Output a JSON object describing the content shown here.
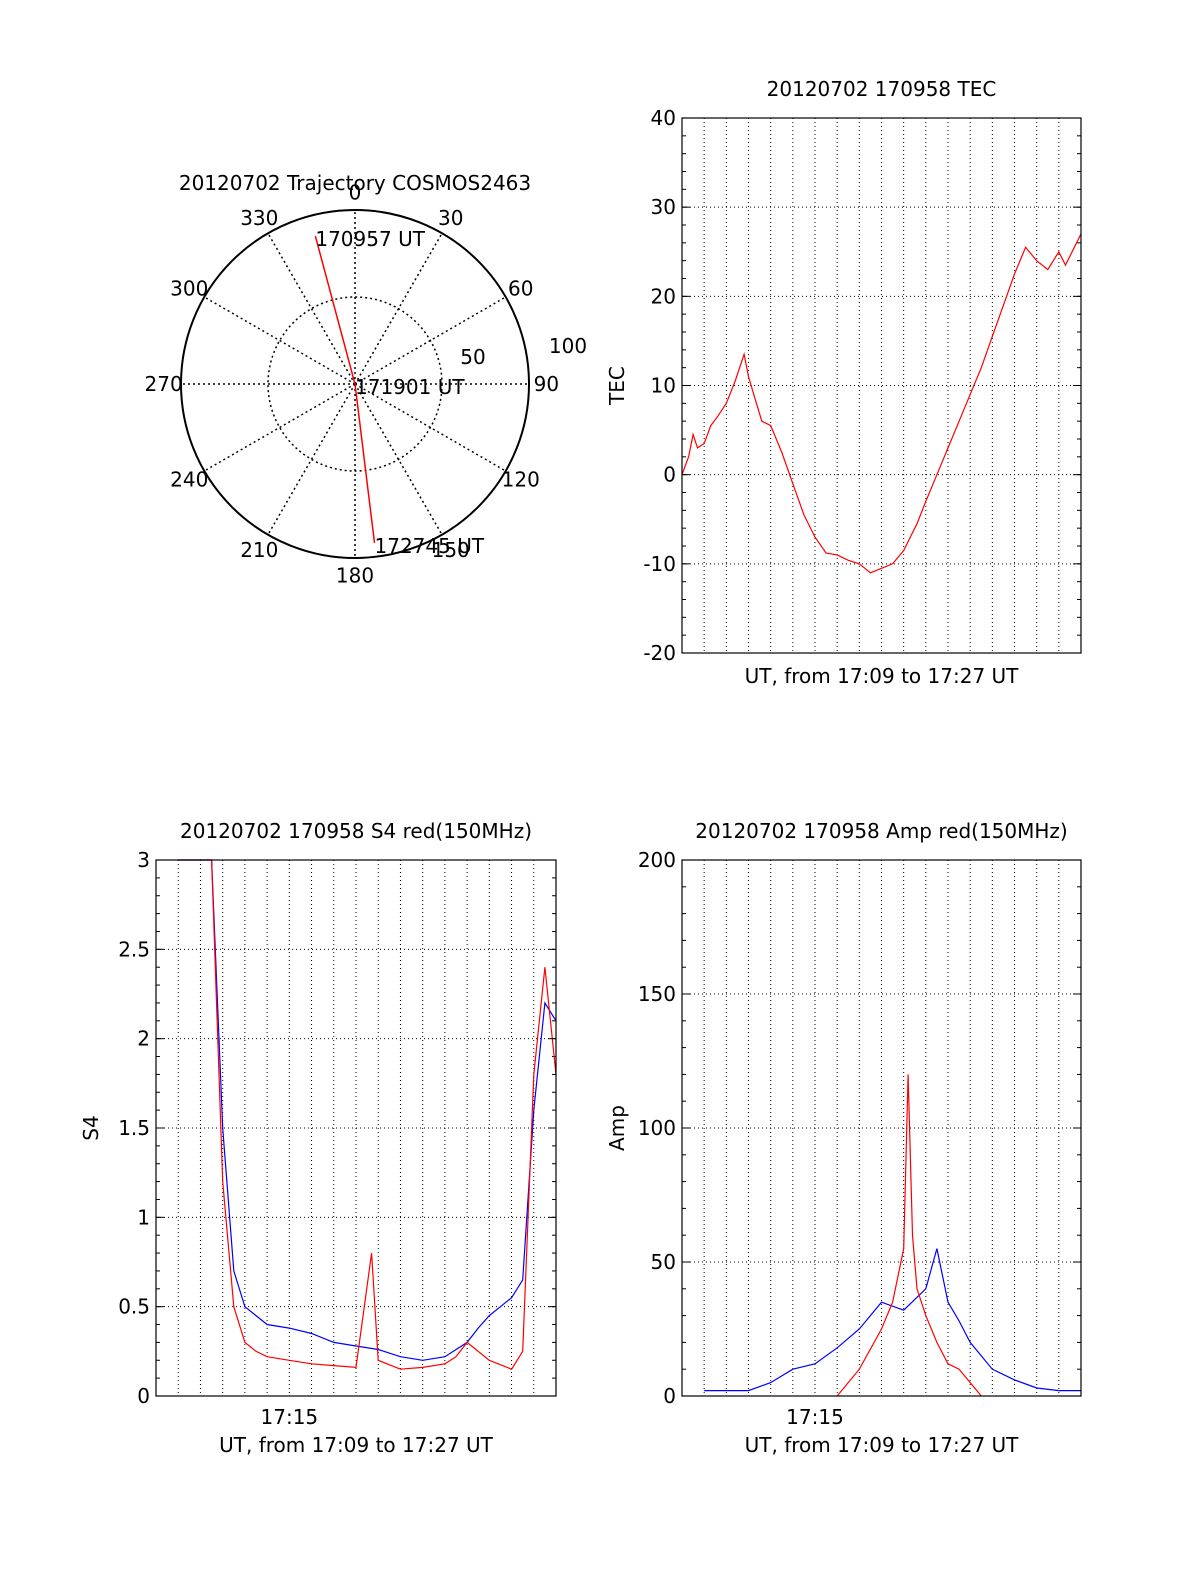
{
  "chart_data": [
    {
      "type": "polar",
      "title": "20120702 Trajectory COSMOS2463",
      "azimuth_ticks": [
        0,
        30,
        60,
        90,
        120,
        150,
        180,
        210,
        240,
        270,
        300,
        330
      ],
      "azimuth_labels": [
        "0",
        "30",
        "60",
        "90",
        "120",
        "150",
        "180",
        "210",
        "240",
        "270",
        "300",
        "330"
      ],
      "radial_ring_labels": [
        "50",
        "100"
      ],
      "radial_max": 100,
      "grid": true,
      "series": [
        {
          "color": "#ff0000",
          "points": [
            {
              "label": "170957 UT",
              "azimuth": 345,
              "zenith": 88
            },
            {
              "label": "171901 UT",
              "azimuth": 0,
              "zenith": 0
            },
            {
              "label": "172745 UT",
              "azimuth": 173,
              "zenith": 92
            }
          ]
        }
      ]
    },
    {
      "type": "line",
      "title": "20120702 170958 TEC",
      "xlabel": "UT, from 17:09 to 17:27 UT",
      "ylabel": "TEC",
      "xlim": [
        0,
        18
      ],
      "ylim": [
        -20,
        40
      ],
      "yticks": [
        -20,
        -10,
        0,
        10,
        20,
        30,
        40
      ],
      "ytick_labels": [
        "-20",
        "-10",
        "0",
        "10",
        "20",
        "30",
        "40"
      ],
      "grid": true,
      "series": [
        {
          "color": "#ff0000",
          "x": [
            0.0,
            0.3,
            0.5,
            0.7,
            1.0,
            1.3,
            1.6,
            2.0,
            2.4,
            2.8,
            3.0,
            3.3,
            3.6,
            4.0,
            4.5,
            5.0,
            5.5,
            6.0,
            6.5,
            7.0,
            7.5,
            8.0,
            8.5,
            9.0,
            9.5,
            10.0,
            10.3,
            10.6,
            11.0,
            11.5,
            12.0,
            12.5,
            13.0,
            13.5,
            14.0,
            14.5,
            15.0,
            15.5,
            16.0,
            16.5,
            17.0,
            17.3,
            17.6,
            18.0
          ],
          "y": [
            0.0,
            2.0,
            4.5,
            3.0,
            3.5,
            5.5,
            6.5,
            8.0,
            10.5,
            13.5,
            11.0,
            8.5,
            6.0,
            5.5,
            2.5,
            -1.0,
            -4.5,
            -7.0,
            -8.8,
            -9.0,
            -9.6,
            -10.0,
            -11.0,
            -10.5,
            -10.0,
            -8.5,
            -7.0,
            -5.5,
            -3.0,
            0.0,
            3.0,
            6.0,
            9.0,
            12.0,
            15.5,
            19.0,
            22.5,
            25.5,
            24.0,
            23.0,
            25.0,
            23.5,
            25.0,
            27.0
          ]
        }
      ]
    },
    {
      "type": "line",
      "title": "20120702 170958 S4 red(150MHz)",
      "xlabel": "UT, from 17:09 to 17:27 UT",
      "ylabel": "S4",
      "xlim": [
        0,
        18
      ],
      "ylim": [
        0,
        3
      ],
      "xticks": [
        6
      ],
      "xtick_labels": [
        "17:15"
      ],
      "yticks": [
        0,
        0.5,
        1,
        1.5,
        2,
        2.5,
        3
      ],
      "ytick_labels": [
        "0",
        "0.5",
        "1",
        "1.5",
        "2",
        "2.5",
        "3"
      ],
      "grid": true,
      "series": [
        {
          "color": "#0000ff",
          "x": [
            1.0,
            1.5,
            2.0,
            2.5,
            3.0,
            3.5,
            4.0,
            4.5,
            5.0,
            6.0,
            7.0,
            8.0,
            9.0,
            10.0,
            11.0,
            12.0,
            13.0,
            14.0,
            14.5,
            15.0,
            15.5,
            16.0,
            16.5,
            17.0,
            17.5,
            18.0
          ],
          "y": [
            3.0,
            3.0,
            3.0,
            3.0,
            1.5,
            0.7,
            0.5,
            0.45,
            0.4,
            0.38,
            0.35,
            0.3,
            0.28,
            0.26,
            0.22,
            0.2,
            0.22,
            0.3,
            0.38,
            0.45,
            0.5,
            0.55,
            0.65,
            1.6,
            2.2,
            2.1
          ]
        },
        {
          "color": "#ff0000",
          "x": [
            1.0,
            1.5,
            2.0,
            2.5,
            3.0,
            3.5,
            4.0,
            4.5,
            5.0,
            6.0,
            7.0,
            8.0,
            9.0,
            9.7,
            10.0,
            11.0,
            12.0,
            13.0,
            13.5,
            14.0,
            15.0,
            16.0,
            16.5,
            17.0,
            17.5,
            18.0
          ],
          "y": [
            3.0,
            3.0,
            3.0,
            3.0,
            1.2,
            0.5,
            0.3,
            0.25,
            0.22,
            0.2,
            0.18,
            0.17,
            0.16,
            0.8,
            0.2,
            0.15,
            0.16,
            0.18,
            0.22,
            0.3,
            0.2,
            0.15,
            0.25,
            1.8,
            2.4,
            1.8
          ]
        }
      ]
    },
    {
      "type": "line",
      "title": "20120702 170958 Amp red(150MHz)",
      "xlabel": "UT, from 17:09 to 17:27 UT",
      "ylabel": "Amp",
      "xlim": [
        0,
        18
      ],
      "ylim": [
        0,
        200
      ],
      "xticks": [
        6
      ],
      "xtick_labels": [
        "17:15"
      ],
      "yticks": [
        0,
        50,
        100,
        150,
        200
      ],
      "ytick_labels": [
        "0",
        "50",
        "100",
        "150",
        "200"
      ],
      "grid": true,
      "series": [
        {
          "color": "#0000ff",
          "x": [
            1.0,
            2.0,
            3.0,
            4.0,
            5.0,
            6.0,
            7.0,
            8.0,
            9.0,
            10.0,
            11.0,
            11.5,
            12.0,
            12.5,
            13.0,
            14.0,
            15.0,
            16.0,
            17.0,
            18.0
          ],
          "y": [
            2,
            2,
            2,
            5,
            10,
            12,
            18,
            25,
            35,
            32,
            40,
            55,
            35,
            28,
            20,
            10,
            6,
            3,
            2,
            2
          ]
        },
        {
          "color": "#ff0000",
          "x": [
            7.0,
            8.0,
            9.0,
            9.5,
            10.0,
            10.2,
            10.4,
            10.6,
            11.0,
            11.5,
            12.0,
            12.5,
            13.0,
            13.5
          ],
          "y": [
            0,
            10,
            25,
            35,
            55,
            120,
            60,
            40,
            30,
            20,
            12,
            10,
            5,
            0
          ]
        }
      ]
    }
  ]
}
